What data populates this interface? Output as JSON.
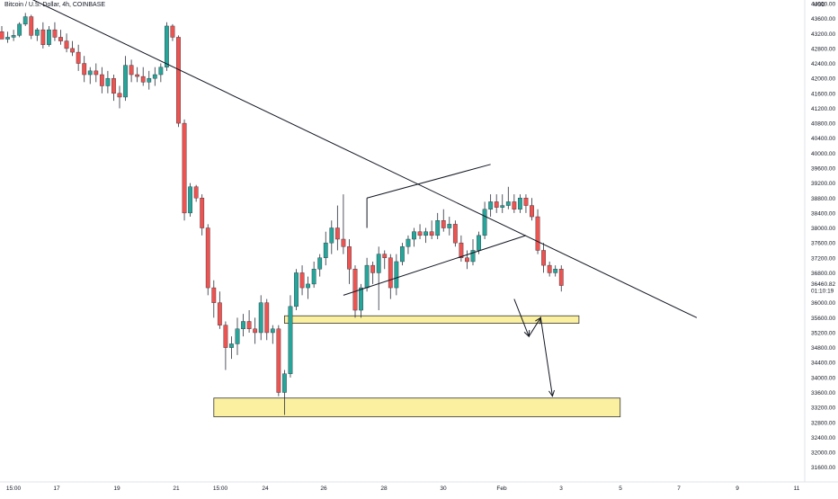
{
  "chart_data": {
    "type": "candlestick",
    "title": "Bitcoin / U.S. Dollar, 4h, COINBASE",
    "currency_label": "USD",
    "ylim": [
      31400,
      44000
    ],
    "y_ticks": [
      44000,
      43600,
      43200,
      42800,
      42400,
      42000,
      41600,
      41200,
      40800,
      40400,
      40000,
      39600,
      39200,
      38800,
      38400,
      38000,
      37600,
      37200,
      36800,
      36400,
      36000,
      35600,
      35200,
      34800,
      34400,
      34000,
      33600,
      33200,
      32800,
      32400,
      32000,
      31600
    ],
    "y_tick_labels": [
      "44000.00",
      "43600.00",
      "43200.00",
      "42800.00",
      "42400.00",
      "42000.00",
      "41600.00",
      "41200.00",
      "40800.00",
      "40400.00",
      "40000.00",
      "39600.00",
      "39200.00",
      "38800.00",
      "38400.00",
      "38000.00",
      "37600.00",
      "37200.00",
      "36800.00",
      "36400.00",
      "36000.00",
      "35600.00",
      "35200.00",
      "34800.00",
      "34400.00",
      "34000.00",
      "33600.00",
      "33200.00",
      "32800.00",
      "32400.00",
      "32000.00",
      "31600.00"
    ],
    "x_labels": [
      "15:00",
      "17",
      "19",
      "21",
      "15:00",
      "24",
      "26",
      "28",
      "30",
      "Feb",
      "3",
      "5",
      "7",
      "9",
      "11"
    ],
    "last_price": {
      "value": "36460.82",
      "countdown": "01:10:19"
    },
    "up_color": "#26a69a",
    "down_color": "#ef5350",
    "candles": [
      {
        "o": 43250,
        "h": 43400,
        "l": 43050,
        "c": 43050
      },
      {
        "o": 43050,
        "h": 43250,
        "l": 42950,
        "c": 43100
      },
      {
        "o": 43100,
        "h": 43300,
        "l": 43000,
        "c": 43150
      },
      {
        "o": 43150,
        "h": 43500,
        "l": 43100,
        "c": 43450
      },
      {
        "o": 43450,
        "h": 43750,
        "l": 43400,
        "c": 43650
      },
      {
        "o": 43650,
        "h": 43700,
        "l": 43050,
        "c": 43150
      },
      {
        "o": 43150,
        "h": 43350,
        "l": 43000,
        "c": 43300
      },
      {
        "o": 43300,
        "h": 43500,
        "l": 42800,
        "c": 42900
      },
      {
        "o": 42900,
        "h": 43400,
        "l": 42850,
        "c": 43300
      },
      {
        "o": 43300,
        "h": 43500,
        "l": 43000,
        "c": 43100
      },
      {
        "o": 43100,
        "h": 43300,
        "l": 42900,
        "c": 43000
      },
      {
        "o": 43000,
        "h": 43200,
        "l": 42700,
        "c": 42800
      },
      {
        "o": 42800,
        "h": 43000,
        "l": 42600,
        "c": 42700
      },
      {
        "o": 42700,
        "h": 42900,
        "l": 42200,
        "c": 42400
      },
      {
        "o": 42400,
        "h": 42600,
        "l": 41900,
        "c": 42100
      },
      {
        "o": 42100,
        "h": 42300,
        "l": 41850,
        "c": 42200
      },
      {
        "o": 42200,
        "h": 42400,
        "l": 41900,
        "c": 42100
      },
      {
        "o": 42100,
        "h": 42300,
        "l": 41600,
        "c": 41800
      },
      {
        "o": 41800,
        "h": 42200,
        "l": 41600,
        "c": 42000
      },
      {
        "o": 42000,
        "h": 42100,
        "l": 41400,
        "c": 41600
      },
      {
        "o": 41600,
        "h": 41800,
        "l": 41200,
        "c": 41500
      },
      {
        "o": 41500,
        "h": 42600,
        "l": 41400,
        "c": 42350
      },
      {
        "o": 42350,
        "h": 42500,
        "l": 41900,
        "c": 42100
      },
      {
        "o": 42100,
        "h": 42300,
        "l": 41900,
        "c": 42050
      },
      {
        "o": 42050,
        "h": 42300,
        "l": 41800,
        "c": 41900
      },
      {
        "o": 41900,
        "h": 42200,
        "l": 41700,
        "c": 42000
      },
      {
        "o": 42000,
        "h": 42300,
        "l": 41800,
        "c": 42100
      },
      {
        "o": 42100,
        "h": 42400,
        "l": 41900,
        "c": 42300
      },
      {
        "o": 42300,
        "h": 43500,
        "l": 42200,
        "c": 43400
      },
      {
        "o": 43400,
        "h": 43450,
        "l": 43000,
        "c": 43100
      },
      {
        "o": 43100,
        "h": 43150,
        "l": 40700,
        "c": 40800
      },
      {
        "o": 40800,
        "h": 40900,
        "l": 38200,
        "c": 38400
      },
      {
        "o": 38400,
        "h": 39200,
        "l": 38300,
        "c": 39100
      },
      {
        "o": 39100,
        "h": 39150,
        "l": 38700,
        "c": 38800
      },
      {
        "o": 38800,
        "h": 38900,
        "l": 37800,
        "c": 38000
      },
      {
        "o": 38000,
        "h": 38100,
        "l": 36200,
        "c": 36400
      },
      {
        "o": 36400,
        "h": 36600,
        "l": 35600,
        "c": 36000
      },
      {
        "o": 36000,
        "h": 36300,
        "l": 35300,
        "c": 35400
      },
      {
        "o": 35400,
        "h": 35500,
        "l": 34200,
        "c": 34800
      },
      {
        "o": 34800,
        "h": 35100,
        "l": 34500,
        "c": 34900
      },
      {
        "o": 34900,
        "h": 35600,
        "l": 34600,
        "c": 35300
      },
      {
        "o": 35300,
        "h": 35700,
        "l": 35100,
        "c": 35500
      },
      {
        "o": 35500,
        "h": 35800,
        "l": 35200,
        "c": 35300
      },
      {
        "o": 35300,
        "h": 35600,
        "l": 34900,
        "c": 35200
      },
      {
        "o": 35200,
        "h": 36200,
        "l": 35000,
        "c": 36000
      },
      {
        "o": 36000,
        "h": 36100,
        "l": 35000,
        "c": 35200
      },
      {
        "o": 35200,
        "h": 35400,
        "l": 34900,
        "c": 35300
      },
      {
        "o": 35300,
        "h": 35400,
        "l": 33500,
        "c": 33600
      },
      {
        "o": 33600,
        "h": 34200,
        "l": 33000,
        "c": 34100
      },
      {
        "o": 34100,
        "h": 36200,
        "l": 34000,
        "c": 35900
      },
      {
        "o": 35900,
        "h": 36900,
        "l": 35800,
        "c": 36800
      },
      {
        "o": 36800,
        "h": 37000,
        "l": 36200,
        "c": 36400
      },
      {
        "o": 36400,
        "h": 36700,
        "l": 36100,
        "c": 36500
      },
      {
        "o": 36500,
        "h": 37100,
        "l": 36400,
        "c": 36900
      },
      {
        "o": 36900,
        "h": 37300,
        "l": 36700,
        "c": 37200
      },
      {
        "o": 37200,
        "h": 37900,
        "l": 37000,
        "c": 37600
      },
      {
        "o": 37600,
        "h": 38200,
        "l": 37300,
        "c": 38000
      },
      {
        "o": 38000,
        "h": 38600,
        "l": 37400,
        "c": 37700
      },
      {
        "o": 37700,
        "h": 38900,
        "l": 37300,
        "c": 37500
      },
      {
        "o": 37500,
        "h": 37700,
        "l": 36500,
        "c": 36900
      },
      {
        "o": 36900,
        "h": 37000,
        "l": 35600,
        "c": 35800
      },
      {
        "o": 35800,
        "h": 36500,
        "l": 35600,
        "c": 36400
      },
      {
        "o": 36400,
        "h": 37200,
        "l": 36300,
        "c": 37000
      },
      {
        "o": 37000,
        "h": 37100,
        "l": 36500,
        "c": 36800
      },
      {
        "o": 36800,
        "h": 37500,
        "l": 35800,
        "c": 37300
      },
      {
        "o": 37300,
        "h": 37400,
        "l": 36900,
        "c": 37200
      },
      {
        "o": 37200,
        "h": 37300,
        "l": 36100,
        "c": 36400
      },
      {
        "o": 36400,
        "h": 37300,
        "l": 36200,
        "c": 37100
      },
      {
        "o": 37100,
        "h": 37600,
        "l": 37000,
        "c": 37500
      },
      {
        "o": 37500,
        "h": 37800,
        "l": 37300,
        "c": 37700
      },
      {
        "o": 37700,
        "h": 38000,
        "l": 37500,
        "c": 37900
      },
      {
        "o": 37900,
        "h": 38100,
        "l": 37700,
        "c": 37800
      },
      {
        "o": 37800,
        "h": 38000,
        "l": 37600,
        "c": 37900
      },
      {
        "o": 37900,
        "h": 38200,
        "l": 37700,
        "c": 37800
      },
      {
        "o": 37800,
        "h": 38400,
        "l": 37700,
        "c": 38200
      },
      {
        "o": 38200,
        "h": 38500,
        "l": 37900,
        "c": 38000
      },
      {
        "o": 38000,
        "h": 38300,
        "l": 37800,
        "c": 38100
      },
      {
        "o": 38100,
        "h": 38200,
        "l": 37500,
        "c": 37600
      },
      {
        "o": 37600,
        "h": 37800,
        "l": 37100,
        "c": 37200
      },
      {
        "o": 37200,
        "h": 37400,
        "l": 36900,
        "c": 37100
      },
      {
        "o": 37100,
        "h": 37700,
        "l": 37000,
        "c": 37400
      },
      {
        "o": 37400,
        "h": 37900,
        "l": 37300,
        "c": 37800
      },
      {
        "o": 37800,
        "h": 38700,
        "l": 37700,
        "c": 38500
      },
      {
        "o": 38500,
        "h": 38900,
        "l": 38300,
        "c": 38700
      },
      {
        "o": 38700,
        "h": 38900,
        "l": 38400,
        "c": 38550
      },
      {
        "o": 38550,
        "h": 38900,
        "l": 38400,
        "c": 38600
      },
      {
        "o": 38600,
        "h": 39100,
        "l": 38500,
        "c": 38700
      },
      {
        "o": 38700,
        "h": 38900,
        "l": 38400,
        "c": 38500
      },
      {
        "o": 38500,
        "h": 38900,
        "l": 38400,
        "c": 38800
      },
      {
        "o": 38800,
        "h": 38900,
        "l": 38400,
        "c": 38600
      },
      {
        "o": 38600,
        "h": 38800,
        "l": 38200,
        "c": 38300
      },
      {
        "o": 38300,
        "h": 38500,
        "l": 37300,
        "c": 37400
      },
      {
        "o": 37400,
        "h": 37600,
        "l": 36800,
        "c": 37000
      },
      {
        "o": 37000,
        "h": 37100,
        "l": 36700,
        "c": 36800
      },
      {
        "o": 36800,
        "h": 37000,
        "l": 36700,
        "c": 36900
      },
      {
        "o": 36900,
        "h": 37000,
        "l": 36300,
        "c": 36460
      }
    ],
    "annotations": {
      "descending_trendline": [
        [
          0,
          44500
        ],
        [
          118,
          35600
        ]
      ],
      "wedge_upper": [
        [
          62,
          38800
        ],
        [
          83,
          39700
        ]
      ],
      "wedge_lower": [
        [
          58,
          36200
        ],
        [
          89,
          37800
        ]
      ],
      "wedge_left_edge": [
        [
          62,
          38000
        ],
        [
          62,
          38800
        ]
      ],
      "support_zone_1": {
        "x_from": 48,
        "x_to": 98,
        "price_top": 35650,
        "price_bottom": 35450
      },
      "support_zone_2": {
        "x_from": 36,
        "x_to": 105,
        "price_top": 33450,
        "price_bottom": 32950
      },
      "projection_path": [
        [
          87,
          36100
        ],
        [
          89.5,
          35100
        ],
        [
          91.5,
          35600
        ],
        [
          93.5,
          33500
        ]
      ]
    }
  }
}
